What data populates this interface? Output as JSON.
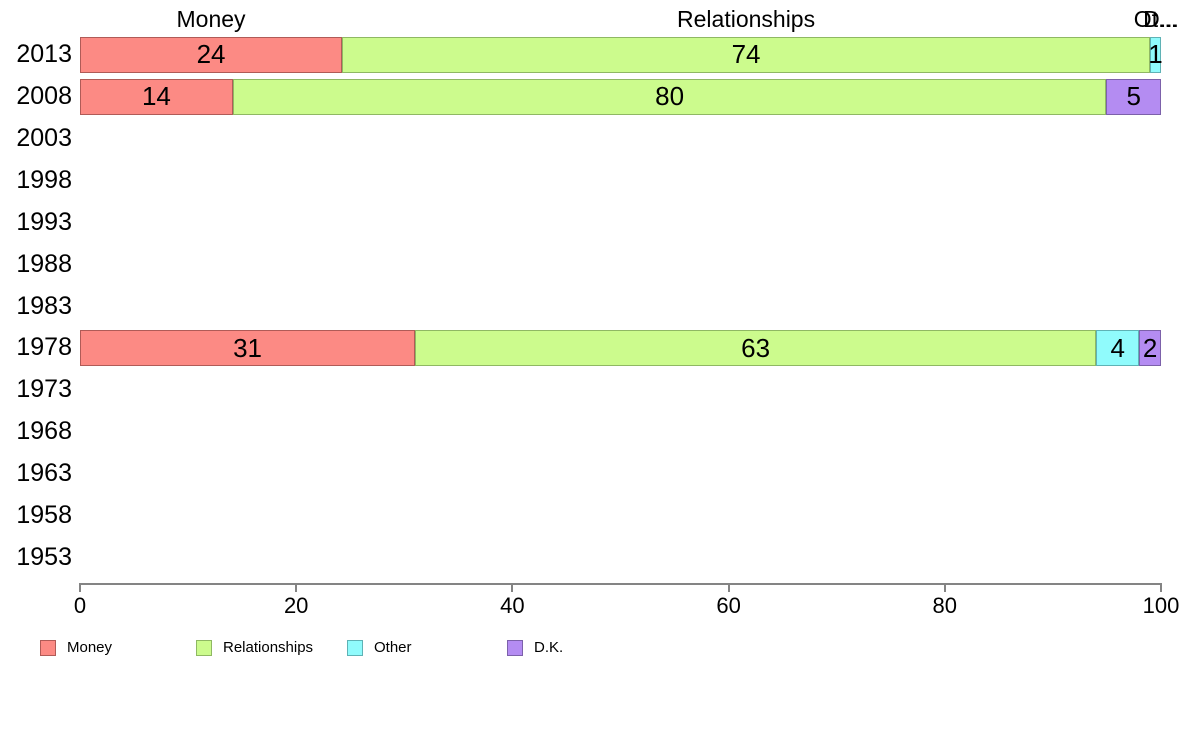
{
  "chart_data": {
    "type": "bar",
    "orientation": "horizontal",
    "stacked": true,
    "title": "",
    "xlabel": "",
    "ylabel": "",
    "grid": false,
    "legend_position": "bottom",
    "xlim": [
      0,
      100
    ],
    "x_ticks": [
      "0",
      "20",
      "40",
      "60",
      "80",
      "100"
    ],
    "x_tick_values": [
      0,
      20,
      40,
      60,
      80,
      100
    ],
    "categories": [
      "2013",
      "2008",
      "2003",
      "1998",
      "1993",
      "1988",
      "1983",
      "1978",
      "1973",
      "1968",
      "1963",
      "1958",
      "1953"
    ],
    "series": [
      {
        "name": "Money",
        "color": "#fc8a84",
        "border_color": "#b05b57",
        "values": [
          24,
          14,
          null,
          null,
          null,
          null,
          null,
          31,
          null,
          null,
          null,
          null,
          null
        ]
      },
      {
        "name": "Relationships",
        "color": "#ccfb8d",
        "border_color": "#8fb863",
        "values": [
          74,
          80,
          null,
          null,
          null,
          null,
          null,
          63,
          null,
          null,
          null,
          null,
          null
        ]
      },
      {
        "name": "Other",
        "color": "#90fbfc",
        "border_color": "#5fb2b5",
        "values": [
          1,
          0,
          null,
          null,
          null,
          null,
          null,
          4,
          null,
          null,
          null,
          null,
          null
        ]
      },
      {
        "name": "D.K.",
        "color": "#b48cf2",
        "border_color": "#7c61aa",
        "values": [
          0,
          5,
          null,
          null,
          null,
          null,
          null,
          2,
          null,
          null,
          null,
          null,
          null
        ]
      }
    ],
    "top_annotations": [
      "Money",
      "Relationships",
      "Ot...",
      "D..."
    ]
  },
  "legend": {
    "items": [
      {
        "label": "Money",
        "color": "#fc8a84",
        "border_color": "#b05b57"
      },
      {
        "label": "Relationships",
        "color": "#ccfb8d",
        "border_color": "#8fb863"
      },
      {
        "label": "Other",
        "color": "#90fbfc",
        "border_color": "#5fb2b5"
      },
      {
        "label": "D.K.",
        "color": "#b48cf2",
        "border_color": "#7c61aa"
      }
    ]
  }
}
